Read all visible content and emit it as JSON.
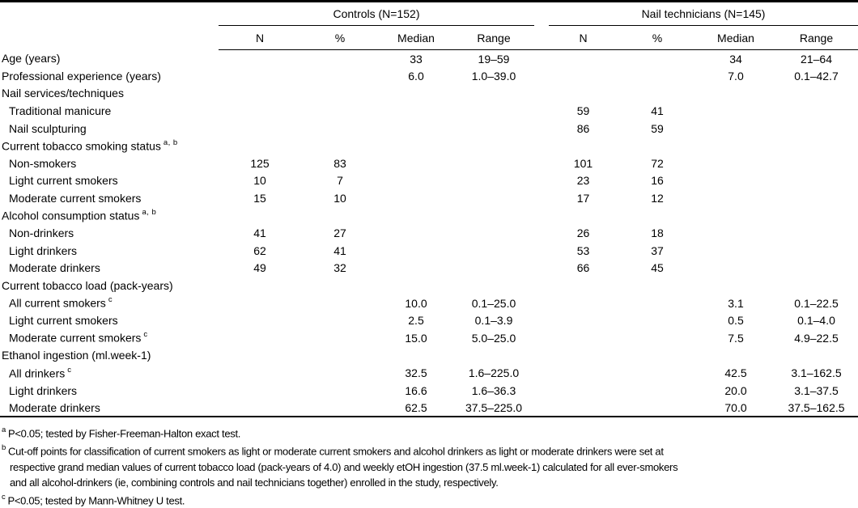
{
  "colors": {
    "background": "#ffffff",
    "text": "#000000",
    "rule": "#000000"
  },
  "table": {
    "groups": [
      {
        "label": "Controls (N=152)"
      },
      {
        "label": "Nail technicians (N=145)"
      }
    ],
    "sub_headers": [
      "N",
      "%",
      "Median",
      "Range"
    ],
    "rows": [
      {
        "label": "Age (years)",
        "indent": false,
        "sup": "",
        "values": [
          "",
          "",
          "33",
          "19–59",
          "",
          "",
          "34",
          "21–64"
        ]
      },
      {
        "label": "Professional experience (years)",
        "indent": false,
        "sup": "",
        "values": [
          "",
          "",
          "6.0",
          "1.0–39.0",
          "",
          "",
          "7.0",
          "0.1–42.7"
        ]
      },
      {
        "label": "Nail services/techniques",
        "indent": false,
        "sup": "",
        "values": [
          "",
          "",
          "",
          "",
          "",
          "",
          "",
          ""
        ]
      },
      {
        "label": "Traditional manicure",
        "indent": true,
        "sup": "",
        "values": [
          "",
          "",
          "",
          "",
          "59",
          "41",
          "",
          ""
        ]
      },
      {
        "label": "Nail sculpturing",
        "indent": true,
        "sup": "",
        "values": [
          "",
          "",
          "",
          "",
          "86",
          "59",
          "",
          ""
        ]
      },
      {
        "label": "Current tobacco smoking status",
        "indent": false,
        "sup": "a, b",
        "values": [
          "",
          "",
          "",
          "",
          "",
          "",
          "",
          ""
        ]
      },
      {
        "label": "Non-smokers",
        "indent": true,
        "sup": "",
        "values": [
          "125",
          "83",
          "",
          "",
          "101",
          "72",
          "",
          ""
        ]
      },
      {
        "label": "Light current smokers",
        "indent": true,
        "sup": "",
        "values": [
          "10",
          "7",
          "",
          "",
          "23",
          "16",
          "",
          ""
        ]
      },
      {
        "label": "Moderate current smokers",
        "indent": true,
        "sup": "",
        "values": [
          "15",
          "10",
          "",
          "",
          "17",
          "12",
          "",
          ""
        ]
      },
      {
        "label": "Alcohol consumption status",
        "indent": false,
        "sup": "a, b",
        "values": [
          "",
          "",
          "",
          "",
          "",
          "",
          "",
          ""
        ]
      },
      {
        "label": "Non-drinkers",
        "indent": true,
        "sup": "",
        "values": [
          "41",
          "27",
          "",
          "",
          "26",
          "18",
          "",
          ""
        ]
      },
      {
        "label": "Light drinkers",
        "indent": true,
        "sup": "",
        "values": [
          "62",
          "41",
          "",
          "",
          "53",
          "37",
          "",
          ""
        ]
      },
      {
        "label": "Moderate drinkers",
        "indent": true,
        "sup": "",
        "values": [
          "49",
          "32",
          "",
          "",
          "66",
          "45",
          "",
          ""
        ]
      },
      {
        "label": "Current tobacco load (pack-years)",
        "indent": false,
        "sup": "",
        "values": [
          "",
          "",
          "",
          "",
          "",
          "",
          "",
          ""
        ]
      },
      {
        "label": "All current smokers",
        "indent": true,
        "sup": "c",
        "values": [
          "",
          "",
          "10.0",
          "0.1–25.0",
          "",
          "",
          "3.1",
          "0.1–22.5"
        ]
      },
      {
        "label": "Light current smokers",
        "indent": true,
        "sup": "",
        "values": [
          "",
          "",
          "2.5",
          "0.1–3.9",
          "",
          "",
          "0.5",
          "0.1–4.0"
        ]
      },
      {
        "label": "Moderate current smokers",
        "indent": true,
        "sup": "c",
        "values": [
          "",
          "",
          "15.0",
          "5.0–25.0",
          "",
          "",
          "7.5",
          "4.9–22.5"
        ]
      },
      {
        "label": "Ethanol ingestion (ml.week-1)",
        "indent": false,
        "sup": "",
        "values": [
          "",
          "",
          "",
          "",
          "",
          "",
          "",
          ""
        ]
      },
      {
        "label": "All drinkers",
        "indent": true,
        "sup": "c",
        "values": [
          "",
          "",
          "32.5",
          "1.6–225.0",
          "",
          "",
          "42.5",
          "3.1–162.5"
        ]
      },
      {
        "label": "Light drinkers",
        "indent": true,
        "sup": "",
        "values": [
          "",
          "",
          "16.6",
          "1.6–36.3",
          "",
          "",
          "20.0",
          "3.1–37.5"
        ]
      },
      {
        "label": "Moderate drinkers",
        "indent": true,
        "sup": "",
        "values": [
          "",
          "",
          "62.5",
          "37.5–225.0",
          "",
          "",
          "70.0",
          "37.5–162.5"
        ]
      }
    ]
  },
  "footnotes": [
    {
      "sup": "a",
      "lines": [
        "P<0.05; tested by Fisher-Freeman-Halton exact test."
      ]
    },
    {
      "sup": "b",
      "lines": [
        "Cut-off points for classification of current smokers as light or moderate current smokers and alcohol drinkers as light or moderate drinkers were set at",
        "respective grand median values of current tobacco load (pack-years of 4.0) and weekly etOH ingestion (37.5 ml.week-1) calculated for all ever-smokers",
        "and all alcohol-drinkers (ie, combining controls and nail technicians together) enrolled in the study, respectively."
      ]
    },
    {
      "sup": "c",
      "lines": [
        "P<0.05; tested by Mann-Whitney U test."
      ]
    }
  ]
}
